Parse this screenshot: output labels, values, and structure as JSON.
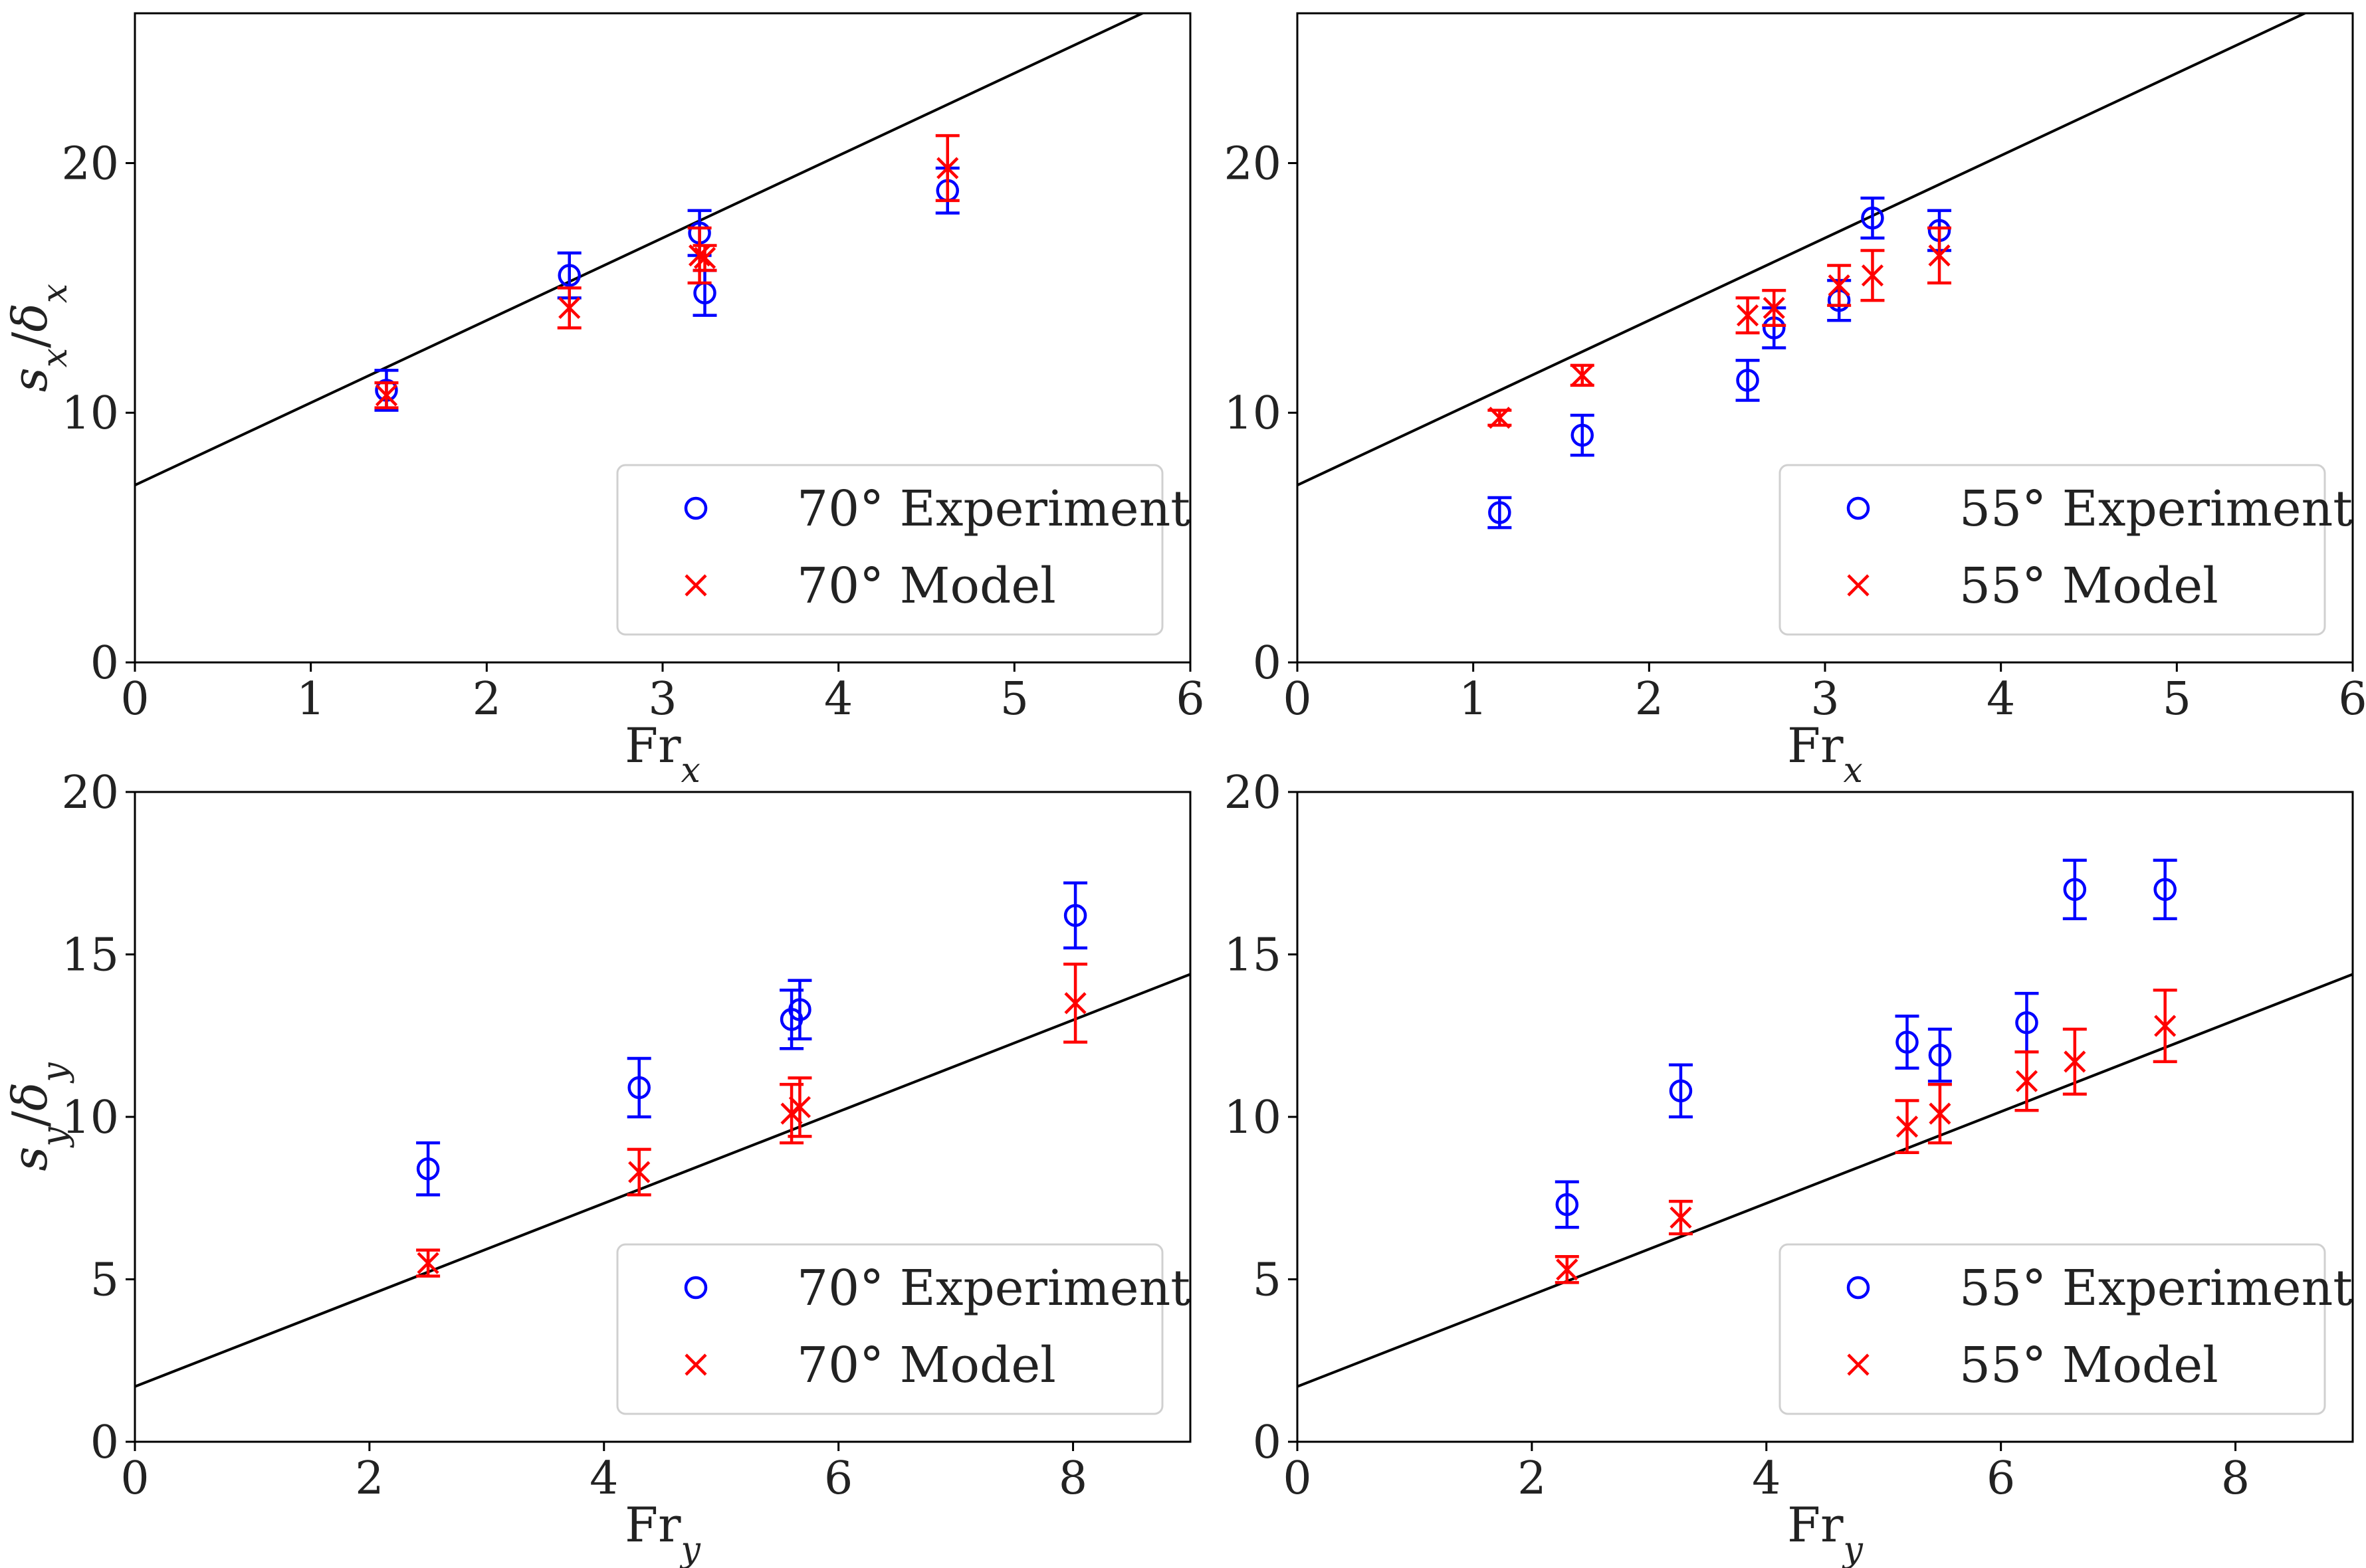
{
  "chart_data": [
    {
      "type": "scatter",
      "xlabel": "Fr",
      "xlabel_sub": "x",
      "ylabel": "s_x/δ_x",
      "xlim": [
        0,
        6
      ],
      "ylim": [
        0,
        26
      ],
      "xticks": [
        0,
        1,
        2,
        3,
        4,
        5,
        6
      ],
      "yticks": [
        0,
        10,
        20
      ],
      "fit_line": {
        "intercept": 7.1,
        "slope": 3.3
      },
      "legend_position": "bottom-right",
      "series": [
        {
          "name": "70° Experiment",
          "marker": "circle",
          "color": "#0000ff",
          "x": [
            1.43,
            2.47,
            3.21,
            3.24,
            4.62
          ],
          "y": [
            10.9,
            15.5,
            17.2,
            14.8,
            18.9
          ],
          "err": [
            0.8,
            0.9,
            0.9,
            0.9,
            0.9
          ]
        },
        {
          "name": "70° Model",
          "marker": "x",
          "color": "#ff0000",
          "x": [
            1.43,
            2.47,
            3.21,
            3.24,
            4.62
          ],
          "y": [
            10.7,
            14.2,
            16.3,
            16.2,
            19.8
          ],
          "err": [
            0.5,
            0.8,
            1.1,
            0.5,
            1.3
          ]
        }
      ]
    },
    {
      "type": "scatter",
      "xlabel": "Fr",
      "xlabel_sub": "x",
      "ylabel": "",
      "xlim": [
        0,
        6
      ],
      "ylim": [
        0,
        26
      ],
      "xticks": [
        0,
        1,
        2,
        3,
        4,
        5,
        6
      ],
      "yticks": [
        0,
        10,
        20
      ],
      "fit_line": {
        "intercept": 7.1,
        "slope": 3.3
      },
      "legend_position": "bottom-right",
      "series": [
        {
          "name": "55° Experiment",
          "marker": "circle",
          "color": "#0000ff",
          "x": [
            1.15,
            1.62,
            2.56,
            2.71,
            3.08,
            3.27,
            3.65
          ],
          "y": [
            6.0,
            9.1,
            11.3,
            13.4,
            14.5,
            17.8,
            17.3
          ],
          "err": [
            0.6,
            0.8,
            0.8,
            0.8,
            0.8,
            0.8,
            0.8
          ]
        },
        {
          "name": "55° Model",
          "marker": "x",
          "color": "#ff0000",
          "x": [
            1.15,
            1.62,
            2.56,
            2.71,
            3.08,
            3.27,
            3.65
          ],
          "y": [
            9.8,
            11.5,
            13.9,
            14.2,
            15.1,
            15.5,
            16.3
          ],
          "err": [
            0.3,
            0.4,
            0.7,
            0.7,
            0.8,
            1.0,
            1.1
          ]
        }
      ]
    },
    {
      "type": "scatter",
      "xlabel": "Fr",
      "xlabel_sub": "y",
      "ylabel": "s_y/δ_y",
      "xlim": [
        0,
        9
      ],
      "ylim": [
        0,
        20
      ],
      "xticks": [
        0,
        2,
        4,
        6,
        8
      ],
      "yticks": [
        0,
        5,
        10,
        15,
        20
      ],
      "fit_line": {
        "intercept": 1.7,
        "slope": 1.41
      },
      "legend_position": "bottom-right",
      "series": [
        {
          "name": "70° Experiment",
          "marker": "circle",
          "color": "#0000ff",
          "x": [
            2.5,
            4.3,
            5.6,
            5.67,
            8.02
          ],
          "y": [
            8.4,
            10.9,
            13.0,
            13.3,
            16.2
          ],
          "err": [
            0.8,
            0.9,
            0.9,
            0.9,
            1.0
          ]
        },
        {
          "name": "70° Model",
          "marker": "x",
          "color": "#ff0000",
          "x": [
            2.5,
            4.3,
            5.6,
            5.67,
            8.02
          ],
          "y": [
            5.5,
            8.3,
            10.1,
            10.3,
            13.5
          ],
          "err": [
            0.4,
            0.7,
            0.9,
            0.9,
            1.2
          ]
        }
      ]
    },
    {
      "type": "scatter",
      "xlabel": "Fr",
      "xlabel_sub": "y",
      "ylabel": "",
      "xlim": [
        0,
        9
      ],
      "ylim": [
        0,
        20
      ],
      "xticks": [
        0,
        2,
        4,
        6,
        8
      ],
      "yticks": [
        0,
        5,
        10,
        15,
        20
      ],
      "fit_line": {
        "intercept": 1.7,
        "slope": 1.41
      },
      "legend_position": "bottom-right",
      "series": [
        {
          "name": "55° Experiment",
          "marker": "circle",
          "color": "#0000ff",
          "x": [
            2.3,
            3.27,
            5.2,
            5.48,
            6.22,
            6.63,
            7.4
          ],
          "y": [
            7.3,
            10.8,
            12.3,
            11.9,
            12.9,
            17.0,
            17.0
          ],
          "err": [
            0.7,
            0.8,
            0.8,
            0.8,
            0.9,
            0.9,
            0.9
          ]
        },
        {
          "name": "55° Model",
          "marker": "x",
          "color": "#ff0000",
          "x": [
            2.3,
            3.27,
            5.2,
            5.48,
            6.22,
            6.63,
            7.4
          ],
          "y": [
            5.3,
            6.9,
            9.7,
            10.1,
            11.1,
            11.7,
            12.8
          ],
          "err": [
            0.4,
            0.5,
            0.8,
            0.9,
            0.9,
            1.0,
            1.1
          ]
        }
      ]
    }
  ]
}
